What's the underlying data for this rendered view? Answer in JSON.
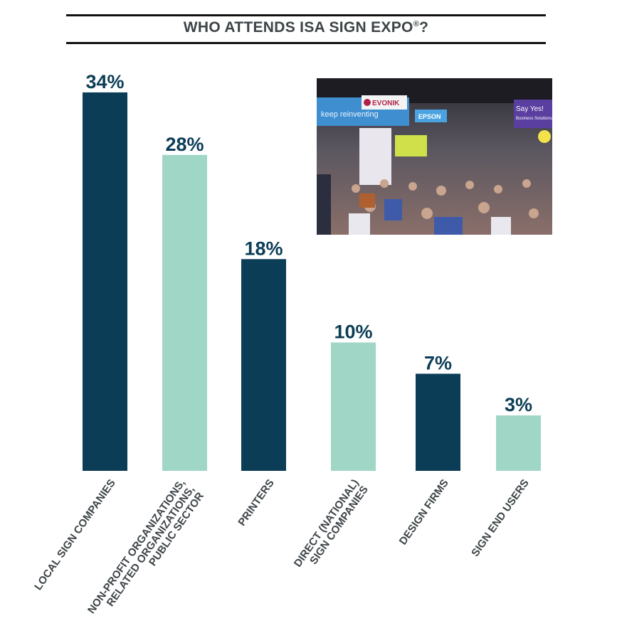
{
  "chart_data": {
    "type": "bar",
    "title": "WHO ATTENDS ISA SIGN EXPO",
    "title_mark": "®",
    "title_end": "?",
    "categories": [
      [
        "LOCAL SIGN COMPANIES"
      ],
      [
        "NON-PROFIT ORGANIZATIONS,",
        "RELATED ORGANIZATIONS,",
        "PUBLIC SECTOR"
      ],
      [
        "PRINTERS"
      ],
      [
        "DIRECT (NATIONAL)",
        "SIGN COMPANIES"
      ],
      [
        "DESIGN FIRMS"
      ],
      [
        "SIGN END USERS"
      ]
    ],
    "values": [
      34,
      28,
      18,
      10,
      7,
      3
    ],
    "data_labels": [
      "34%",
      "28%",
      "18%",
      "10%",
      "7%",
      "3%"
    ],
    "unit": "%",
    "colors": [
      "#0b3d56",
      "#9fd6c6",
      "#0b3d56",
      "#9fd6c6",
      "#0b3d56",
      "#9fd6c6"
    ],
    "grid": false,
    "legend": "none",
    "axes_visible": false
  },
  "photo": {
    "description_texts": [
      "EVONIK",
      "keep reinventing",
      "EPSON",
      "Say Yes!",
      "Business Solutions"
    ]
  }
}
